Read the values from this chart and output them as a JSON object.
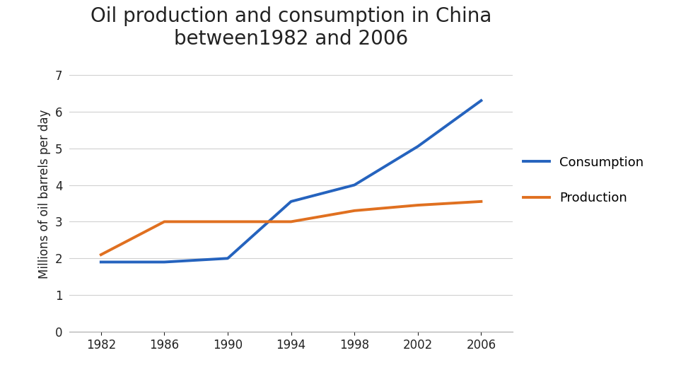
{
  "title": "Oil production and consumption in China\nbetween1982 and 2006",
  "ylabel": "Millions of oil barrels per day",
  "years": [
    1982,
    1986,
    1990,
    1994,
    1998,
    2002,
    2006
  ],
  "consumption": [
    1.9,
    1.9,
    2.0,
    3.55,
    4.0,
    5.05,
    6.3
  ],
  "production": [
    2.1,
    3.0,
    3.0,
    3.0,
    3.3,
    3.45,
    3.55
  ],
  "consumption_color": "#2563BE",
  "production_color": "#E07020",
  "line_width": 2.8,
  "ylim": [
    0,
    7.5
  ],
  "yticks": [
    0,
    1,
    2,
    3,
    4,
    5,
    6,
    7
  ],
  "xlim": [
    1980,
    2008
  ],
  "xticks": [
    1982,
    1986,
    1990,
    1994,
    1998,
    2002,
    2006
  ],
  "title_fontsize": 20,
  "label_fontsize": 12,
  "tick_fontsize": 12,
  "legend_fontsize": 13,
  "background_color": "#ffffff",
  "grid_color": "#d0d0d0"
}
